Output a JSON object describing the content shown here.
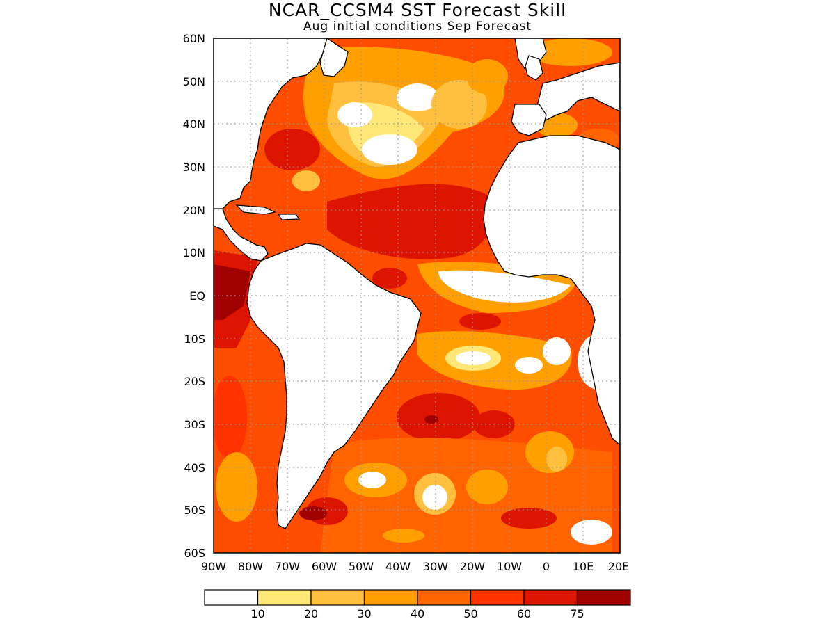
{
  "title": "NCAR_CCSM4 SST Forecast Skill",
  "subtitle": "Aug initial conditions  Sep Forecast",
  "lat_labels": [
    "60N",
    "50N",
    "40N",
    "30N",
    "20N",
    "10N",
    "EQ",
    "10S",
    "20S",
    "30S",
    "40S",
    "50S",
    "60S"
  ],
  "lon_labels": [
    "90W",
    "80W",
    "70W",
    "60W",
    "50W",
    "40W",
    "30W",
    "20W",
    "10W",
    "0",
    "10E",
    "20E"
  ],
  "colorbar": {
    "labels": [
      "10",
      "20",
      "30",
      "40",
      "50",
      "60",
      "75"
    ],
    "colors": [
      "#ffffff",
      "#ffe878",
      "#ffc040",
      "#ffa000",
      "#ff6400",
      "#ff3200",
      "#dc1400",
      "#a00000"
    ]
  },
  "palette": {
    "land": "#ffffff",
    "coast": "#000000",
    "grid": "#999999"
  }
}
